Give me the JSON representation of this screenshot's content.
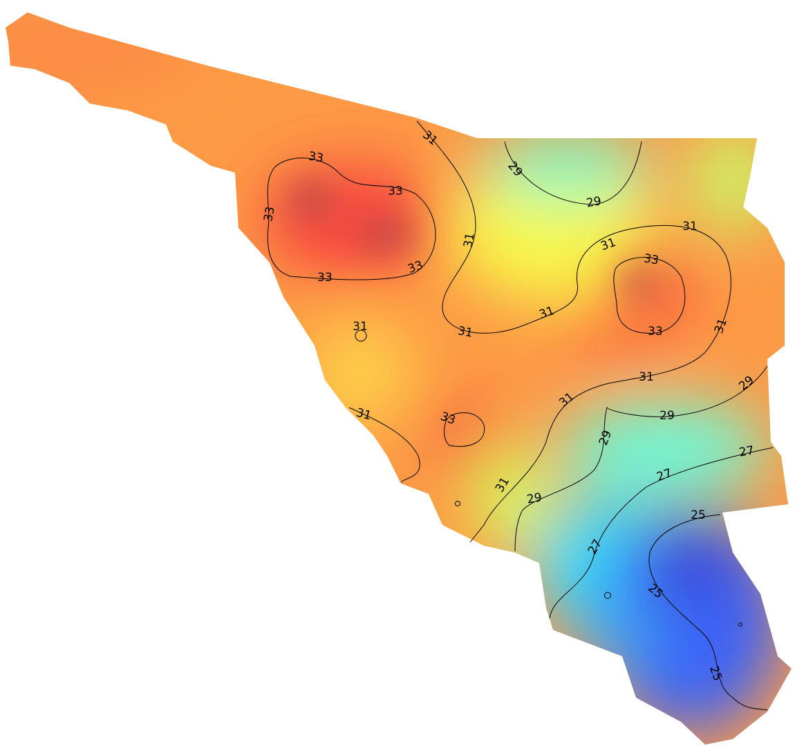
{
  "contour_labels": [
    33,
    33,
    33,
    33,
    33,
    33,
    33,
    33,
    31,
    31,
    31,
    31,
    31,
    31,
    31,
    31,
    31,
    31,
    31,
    31,
    29,
    29,
    29,
    29,
    29,
    29,
    27,
    27,
    27,
    25,
    25,
    25
  ]
}
